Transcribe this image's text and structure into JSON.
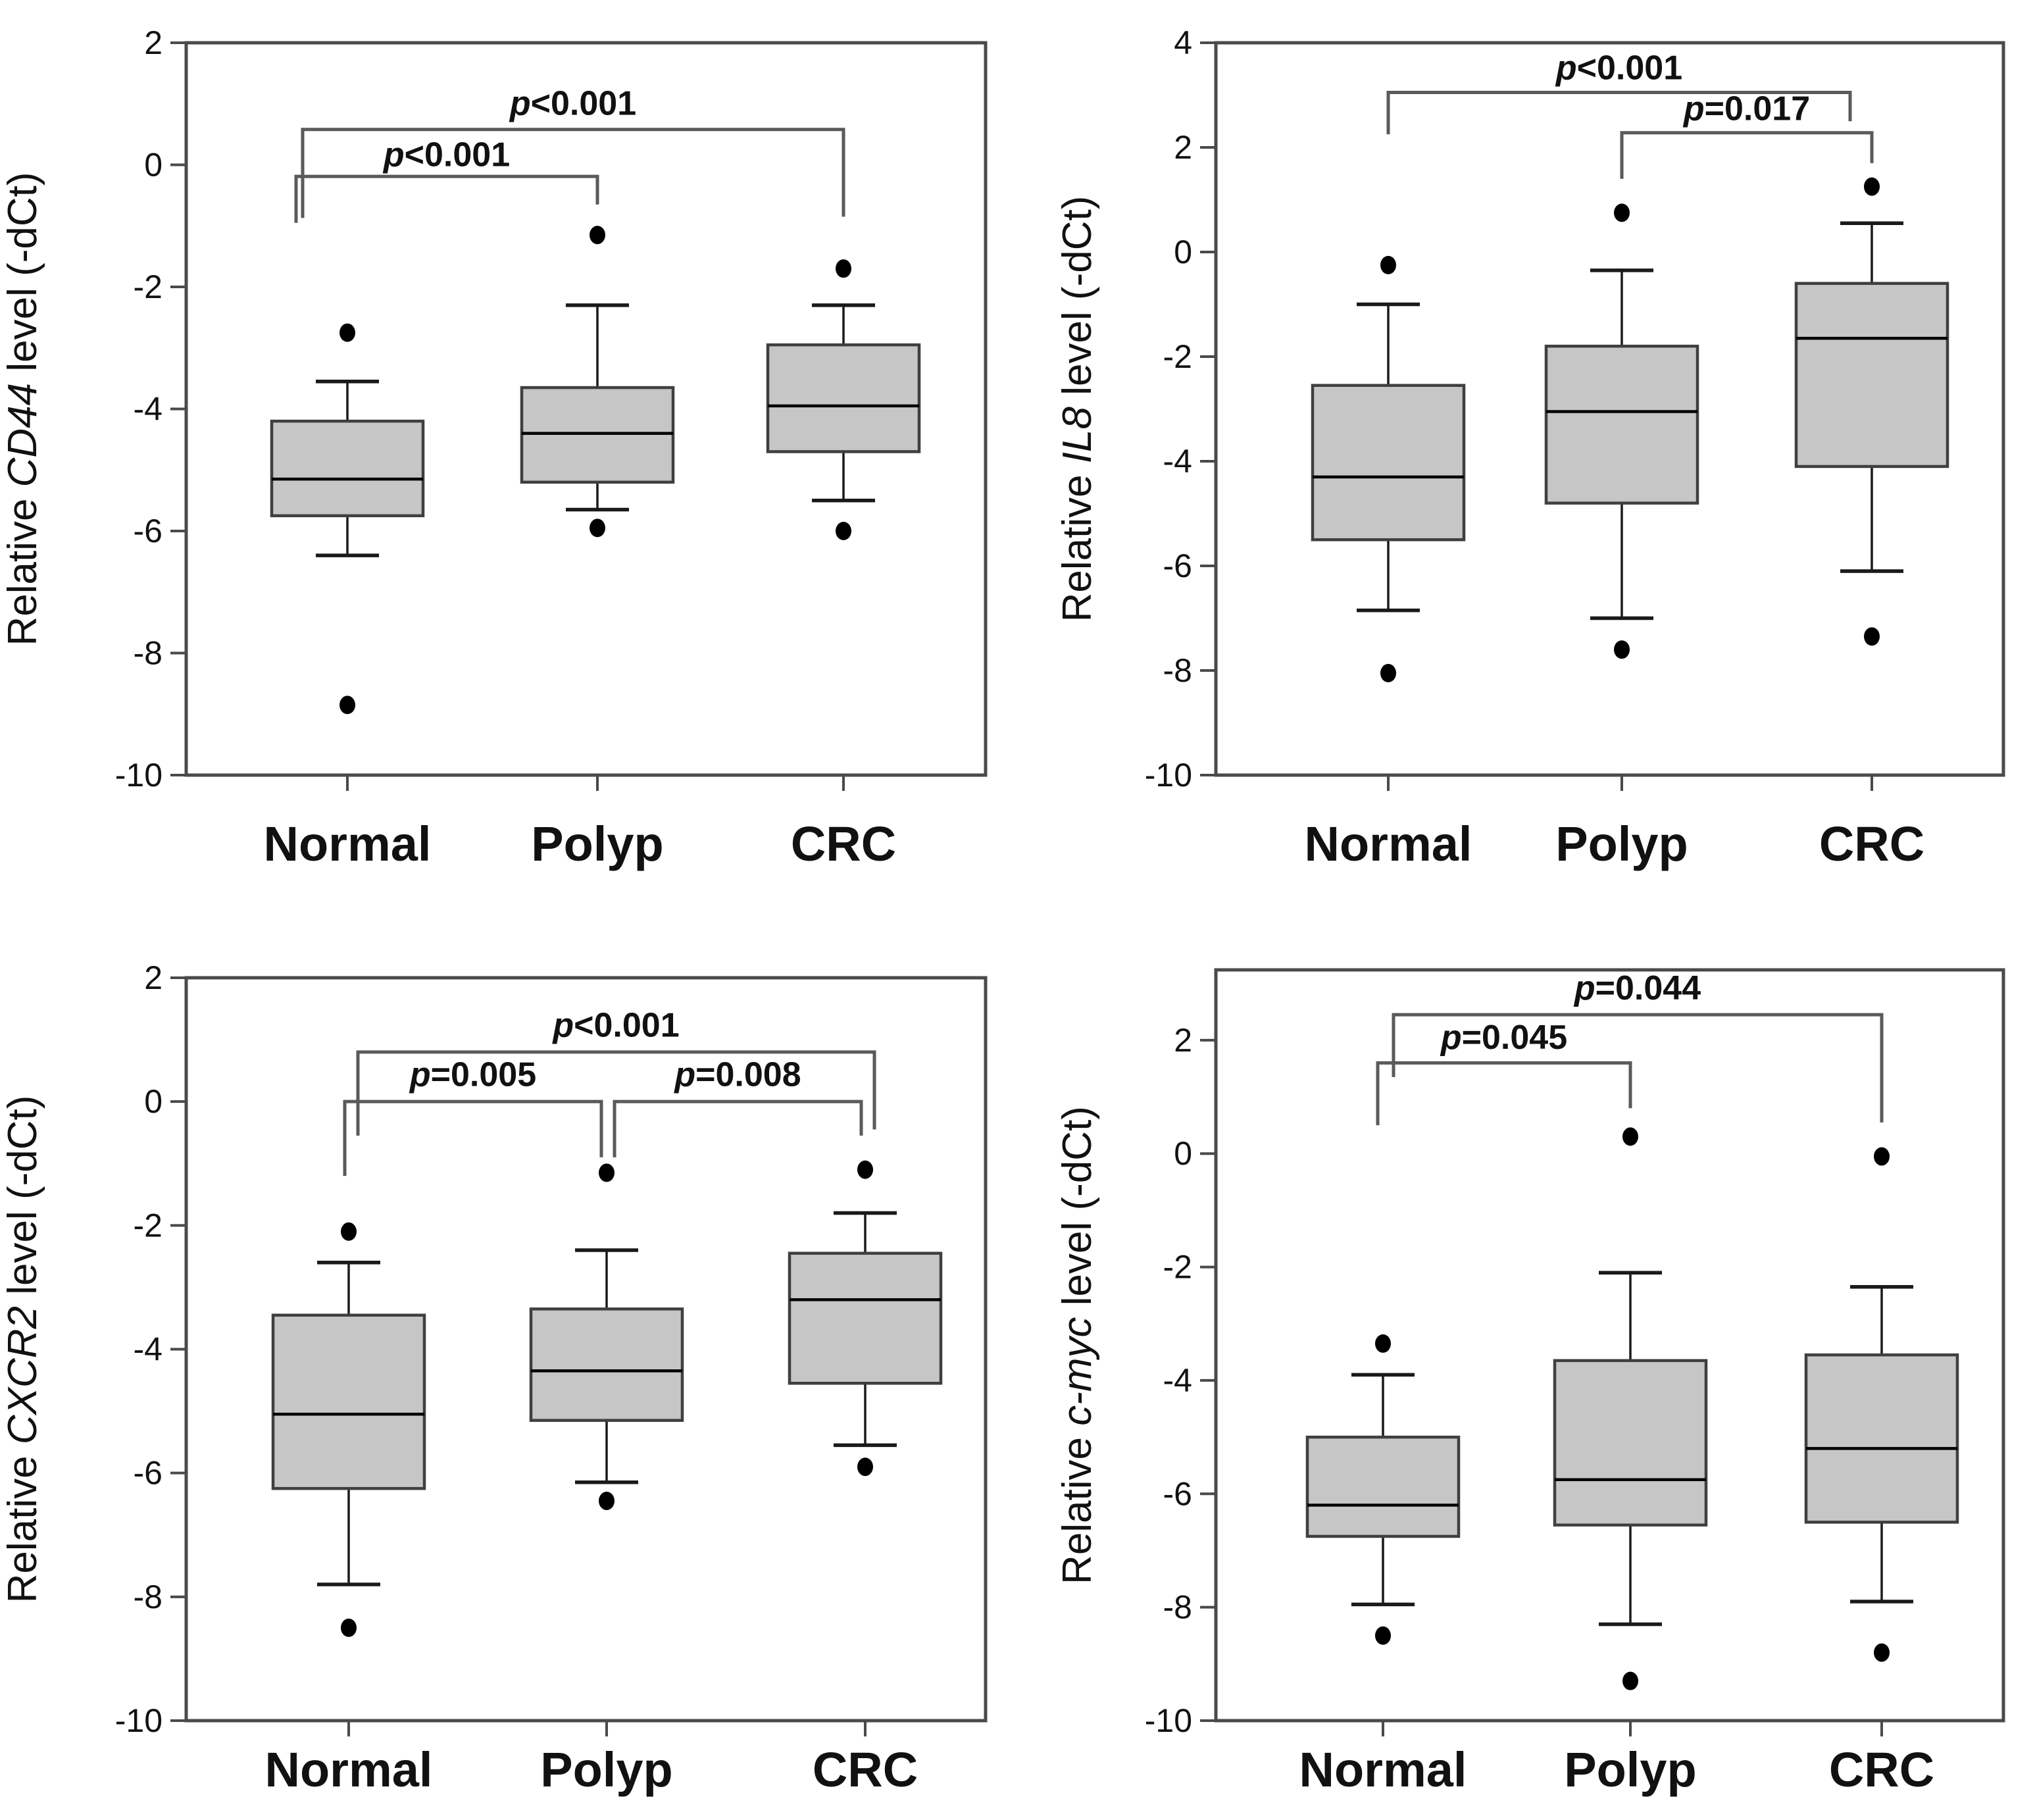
{
  "figure": {
    "description": "Four-panel box plot figure of relative gene expression levels (-dCt) in Normal, Polyp and CRC tissue groups",
    "background": "#ffffff"
  },
  "colors": {
    "box_fill": "#c6c6c6",
    "box_border": "#3f3f3f",
    "frame": "#4a4a4a",
    "whisker": "#1a1a1a",
    "median": "#000000",
    "bracket": "#5a5a5a",
    "dot": "#000000",
    "text": "#111111"
  },
  "chart_data": [
    {
      "type": "box",
      "id": "cd44",
      "ylabel": "Relative CD44 level (-dCt)",
      "ylabel_parts": [
        {
          "text": "Relative ",
          "italic": false
        },
        {
          "text": "CD44",
          "italic": true
        },
        {
          "text": " level (-dCt)",
          "italic": false
        }
      ],
      "categories": [
        "Normal",
        "Polyp",
        "CRC"
      ],
      "ylim": [
        -10,
        2
      ],
      "yticks": [
        2,
        0,
        -2,
        -4,
        -6,
        -8,
        -10
      ],
      "boxes": [
        {
          "category": "Normal",
          "whisker_low": -6.4,
          "q1": -5.75,
          "median": -5.15,
          "q3": -4.2,
          "whisker_high": -3.55,
          "outliers": [
            -2.75,
            -8.85
          ]
        },
        {
          "category": "Polyp",
          "whisker_low": -5.65,
          "q1": -5.2,
          "median": -4.4,
          "q3": -3.65,
          "whisker_high": -2.3,
          "outliers": [
            -1.15,
            -5.95
          ]
        },
        {
          "category": "CRC",
          "whisker_low": -5.5,
          "q1": -4.7,
          "median": -3.95,
          "q3": -2.95,
          "whisker_high": -2.3,
          "outliers": [
            -1.7,
            -6.0
          ]
        }
      ],
      "significance": [
        {
          "groups": [
            0,
            2
          ],
          "bar": 0.58,
          "drop_left": -0.87,
          "drop_right": -0.85,
          "off_left": -68,
          "off_right": 0,
          "label": "p<0.001",
          "label_y": 0.82
        },
        {
          "groups": [
            0,
            1
          ],
          "bar": -0.19,
          "drop_left": -0.95,
          "drop_right": -0.65,
          "off_left": -78,
          "off_right": 0,
          "label": "p<0.001",
          "label_y": -0.02
        }
      ]
    },
    {
      "type": "box",
      "id": "il8",
      "ylabel": "Relative IL8 level (-dCt)",
      "ylabel_parts": [
        {
          "text": "Relative ",
          "italic": false
        },
        {
          "text": "IL8",
          "italic": true
        },
        {
          "text": " level (-dCt)",
          "italic": false
        }
      ],
      "categories": [
        "Normal",
        "Polyp",
        "CRC"
      ],
      "ylim": [
        -10,
        4
      ],
      "yticks": [
        4,
        2,
        0,
        -2,
        -4,
        -6,
        -8,
        -10
      ],
      "boxes": [
        {
          "category": "Normal",
          "whisker_low": -6.85,
          "q1": -5.5,
          "median": -4.3,
          "q3": -2.55,
          "whisker_high": -1.0,
          "outliers": [
            -0.25,
            -8.05
          ]
        },
        {
          "category": "Polyp",
          "whisker_low": -7.0,
          "q1": -4.8,
          "median": -3.05,
          "q3": -1.8,
          "whisker_high": -0.35,
          "outliers": [
            0.75,
            -7.6
          ]
        },
        {
          "category": "CRC",
          "whisker_low": -6.1,
          "q1": -4.1,
          "median": -1.65,
          "q3": -0.6,
          "whisker_high": 0.55,
          "outliers": [
            1.25,
            -7.35
          ]
        }
      ],
      "significance": [
        {
          "groups": [
            0,
            2
          ],
          "bar": 3.05,
          "drop_left": 2.25,
          "drop_right": 2.5,
          "off_left": 0,
          "off_right": -33,
          "label": "p<0.001",
          "label_y": 3.3
        },
        {
          "groups": [
            1,
            2
          ],
          "bar": 2.28,
          "drop_left": 1.4,
          "drop_right": 1.7,
          "off_left": 0,
          "off_right": 0,
          "label": "p=0.017",
          "label_y": 2.52
        }
      ]
    },
    {
      "type": "box",
      "id": "cxcr2",
      "ylabel": "Relative CXCR2 level (-dCt)",
      "ylabel_parts": [
        {
          "text": "Relative ",
          "italic": false
        },
        {
          "text": "CXCR2",
          "italic": true
        },
        {
          "text": " level (-dCt)",
          "italic": false
        }
      ],
      "categories": [
        "Normal",
        "Polyp",
        "CRC"
      ],
      "ylim": [
        -10,
        2
      ],
      "yticks": [
        2,
        0,
        -2,
        -4,
        -6,
        -8,
        -10
      ],
      "boxes": [
        {
          "category": "Normal",
          "whisker_low": -7.8,
          "q1": -6.25,
          "median": -5.05,
          "q3": -3.45,
          "whisker_high": -2.6,
          "outliers": [
            -2.1,
            -8.5
          ]
        },
        {
          "category": "Polyp",
          "whisker_low": -6.15,
          "q1": -5.15,
          "median": -4.35,
          "q3": -3.35,
          "whisker_high": -2.4,
          "outliers": [
            -1.15,
            -6.45
          ]
        },
        {
          "category": "CRC",
          "whisker_low": -5.55,
          "q1": -4.55,
          "median": -3.2,
          "q3": -2.45,
          "whisker_high": -1.8,
          "outliers": [
            -1.1,
            -5.9
          ]
        }
      ],
      "significance": [
        {
          "groups": [
            0,
            2
          ],
          "bar": 0.8,
          "drop_left": -0.55,
          "drop_right": -0.45,
          "off_left": 14,
          "off_right": 14,
          "label": "p<0.001",
          "label_y": 1.05
        },
        {
          "groups": [
            0,
            1
          ],
          "bar": 0.0,
          "drop_left": -1.2,
          "drop_right": -0.9,
          "off_left": -6,
          "off_right": -8,
          "label": "p=0.005",
          "label_y": 0.25
        },
        {
          "groups": [
            1,
            2
          ],
          "bar": 0.0,
          "drop_left": -0.9,
          "drop_right": -0.55,
          "off_left": 12,
          "off_right": -6,
          "label": "p=0.008",
          "label_y": 0.25
        }
      ]
    },
    {
      "type": "box",
      "id": "c-myc",
      "ylabel": "Relative c-myc level (-dCt)",
      "ylabel_parts": [
        {
          "text": "Relative ",
          "italic": false
        },
        {
          "text": "c-myc",
          "italic": true
        },
        {
          "text": " level (-dCt)",
          "italic": false
        }
      ],
      "categories": [
        "Normal",
        "Polyp",
        "CRC"
      ],
      "ylim": [
        -10,
        3.24
      ],
      "yticks": [
        2,
        0,
        -2,
        -4,
        -6,
        -8,
        -10
      ],
      "boxes": [
        {
          "category": "Normal",
          "whisker_low": -7.95,
          "q1": -6.75,
          "median": -6.2,
          "q3": -5.0,
          "whisker_high": -3.9,
          "outliers": [
            -3.35,
            -8.5
          ]
        },
        {
          "category": "Polyp",
          "whisker_low": -8.3,
          "q1": -6.55,
          "median": -5.75,
          "q3": -3.65,
          "whisker_high": -2.1,
          "outliers": [
            0.3,
            -9.3
          ]
        },
        {
          "category": "CRC",
          "whisker_low": -7.9,
          "q1": -6.5,
          "median": -5.2,
          "q3": -3.55,
          "whisker_high": -2.35,
          "outliers": [
            -0.05,
            -8.8
          ]
        }
      ],
      "significance": [
        {
          "groups": [
            0,
            2
          ],
          "bar": 2.45,
          "drop_left": 1.35,
          "drop_right": 0.55,
          "off_left": 16,
          "off_right": 0,
          "label": "p=0.044",
          "label_y": 2.72
        },
        {
          "groups": [
            0,
            1
          ],
          "bar": 1.6,
          "drop_left": 0.5,
          "drop_right": 0.8,
          "off_left": -8,
          "off_right": 0,
          "label": "p=0.045",
          "label_y": 1.85
        }
      ]
    }
  ]
}
